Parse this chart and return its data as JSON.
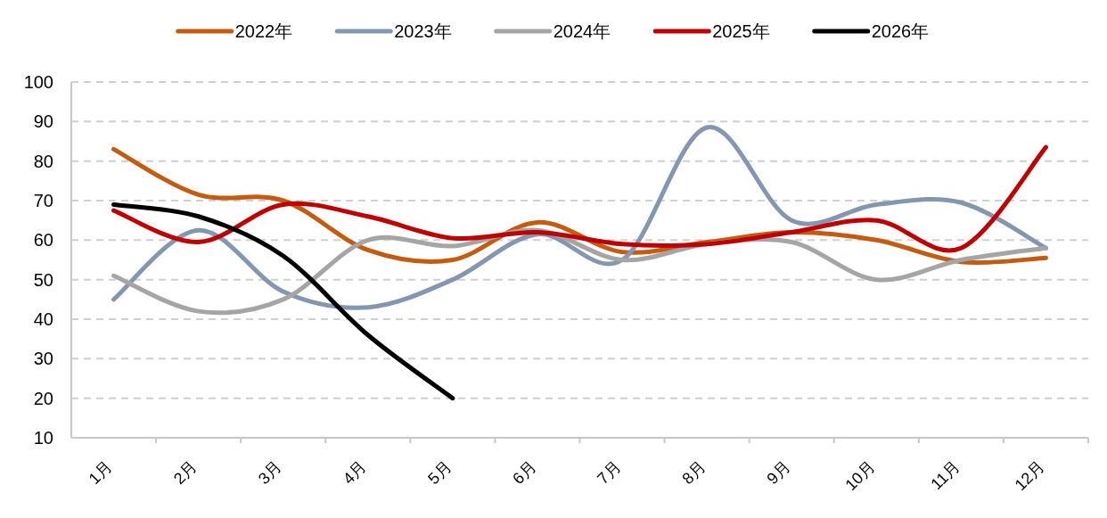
{
  "chart_data": {
    "type": "line",
    "categories": [
      "1月",
      "2月",
      "3月",
      "4月",
      "5月",
      "6月",
      "7月",
      "8月",
      "9月",
      "10月",
      "11月",
      "12月"
    ],
    "series": [
      {
        "name": "2022年",
        "color": "#c55a11",
        "values": [
          83,
          71.5,
          70,
          57.5,
          55,
          64.5,
          57,
          59.5,
          62,
          60,
          54.5,
          55.5
        ]
      },
      {
        "name": "2023年",
        "color": "#8497b0",
        "values": [
          45,
          62.5,
          47,
          43,
          50,
          61.5,
          55,
          88.5,
          65,
          69,
          69.5,
          58
        ]
      },
      {
        "name": "2024年",
        "color": "#a5a5a5",
        "values": [
          51,
          42,
          45,
          60,
          58.5,
          62.5,
          55,
          59,
          59.5,
          50,
          55,
          58
        ]
      },
      {
        "name": "2025年",
        "color": "#c00000",
        "values": [
          67.5,
          59.5,
          69,
          66,
          60.5,
          62,
          59,
          59,
          62,
          65,
          58,
          83.5
        ]
      },
      {
        "name": "2026年",
        "color": "#000000",
        "values": [
          69,
          66,
          56,
          36,
          20,
          null,
          null,
          null,
          null,
          null,
          null,
          null
        ]
      }
    ],
    "ylim": [
      10,
      100
    ],
    "yticks": [
      10,
      20,
      30,
      40,
      50,
      60,
      70,
      80,
      90,
      100
    ],
    "grid": "y",
    "legend": "top",
    "line_style": "solid"
  }
}
